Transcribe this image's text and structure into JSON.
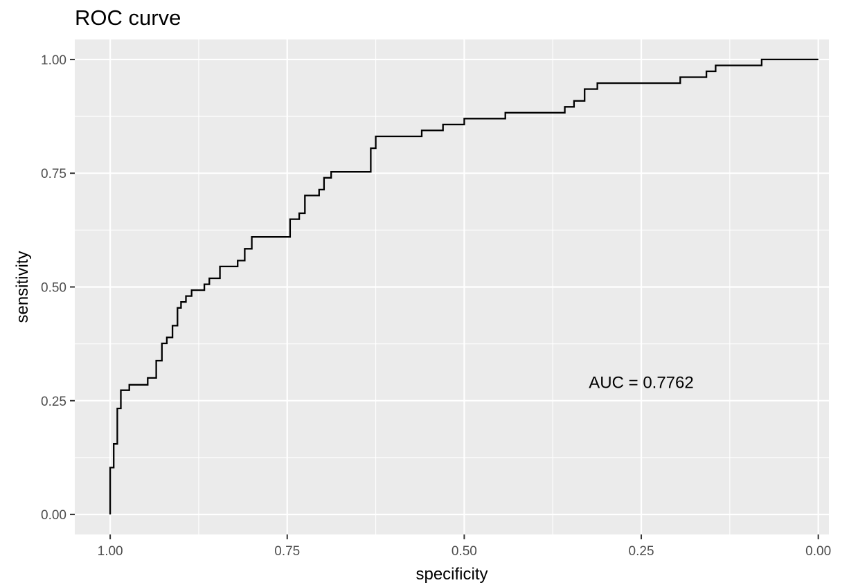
{
  "chart_data": {
    "type": "line",
    "title": "ROC curve",
    "xlabel": "specificity",
    "ylabel": "sensitivity",
    "x_reversed": true,
    "xlim": [
      1.05,
      -0.015
    ],
    "ylim": [
      -0.044,
      1.044
    ],
    "x_ticks": [
      1.0,
      0.75,
      0.5,
      0.25,
      0.0
    ],
    "x_tick_labels": [
      "1.00",
      "0.75",
      "0.50",
      "0.25",
      "0.00"
    ],
    "y_ticks": [
      0.0,
      0.25,
      0.5,
      0.75,
      1.0
    ],
    "y_tick_labels": [
      "0.00",
      "0.25",
      "0.50",
      "0.75",
      "1.00"
    ],
    "grid": true,
    "colors": {
      "panel": "#ebebeb",
      "grid": "#ffffff",
      "line": "#000000"
    },
    "annotation": {
      "text": "AUC = 0.7762",
      "x": 0.25,
      "y": 0.29
    },
    "series": [
      {
        "x": [
          1.0,
          1.0,
          0.995,
          0.995,
          0.99,
          0.99,
          0.985,
          0.985,
          0.973,
          0.973,
          0.947,
          0.947,
          0.935,
          0.935,
          0.927,
          0.927,
          0.92,
          0.92,
          0.912,
          0.912,
          0.905,
          0.905,
          0.9,
          0.9,
          0.893,
          0.893,
          0.885,
          0.885,
          0.867,
          0.867,
          0.86,
          0.86,
          0.845,
          0.845,
          0.82,
          0.82,
          0.81,
          0.81,
          0.8,
          0.8,
          0.746,
          0.746,
          0.733,
          0.733,
          0.725,
          0.725,
          0.705,
          0.705,
          0.698,
          0.698,
          0.688,
          0.688,
          0.632,
          0.632,
          0.625,
          0.625,
          0.56,
          0.56,
          0.53,
          0.53,
          0.5,
          0.5,
          0.442,
          0.442,
          0.358,
          0.358,
          0.345,
          0.345,
          0.33,
          0.33,
          0.312,
          0.312,
          0.195,
          0.195,
          0.158,
          0.158,
          0.145,
          0.145,
          0.08,
          0.08,
          0.0
        ],
        "y": [
          0.0,
          0.103,
          0.103,
          0.155,
          0.155,
          0.233,
          0.233,
          0.273,
          0.273,
          0.285,
          0.285,
          0.3,
          0.3,
          0.338,
          0.338,
          0.376,
          0.376,
          0.389,
          0.389,
          0.415,
          0.415,
          0.454,
          0.454,
          0.467,
          0.467,
          0.48,
          0.48,
          0.493,
          0.493,
          0.506,
          0.506,
          0.519,
          0.519,
          0.545,
          0.545,
          0.558,
          0.558,
          0.584,
          0.584,
          0.61,
          0.61,
          0.649,
          0.649,
          0.662,
          0.662,
          0.701,
          0.701,
          0.714,
          0.714,
          0.74,
          0.74,
          0.753,
          0.753,
          0.805,
          0.805,
          0.831,
          0.831,
          0.844,
          0.844,
          0.857,
          0.857,
          0.87,
          0.87,
          0.883,
          0.883,
          0.896,
          0.896,
          0.909,
          0.909,
          0.935,
          0.935,
          0.948,
          0.948,
          0.961,
          0.961,
          0.974,
          0.974,
          0.987,
          0.987,
          1.0,
          1.0
        ]
      }
    ]
  }
}
